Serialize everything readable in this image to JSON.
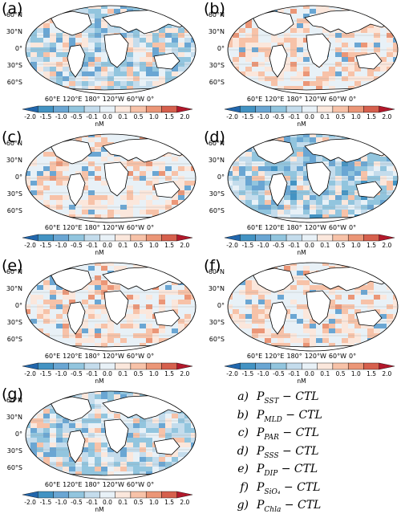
{
  "panels": [
    {
      "label": "(a)",
      "pattern": "mixed"
    },
    {
      "label": "(b)",
      "pattern": "warm"
    },
    {
      "label": "(c)",
      "pattern": "warm"
    },
    {
      "label": "(d)",
      "pattern": "cool"
    },
    {
      "label": "(e)",
      "pattern": "warm"
    },
    {
      "label": "(f)",
      "pattern": "warm"
    },
    {
      "label": "(g)",
      "pattern": "mixed"
    }
  ],
  "latitude_labels": [
    "60°N",
    "30°N",
    "0°",
    "30°S",
    "60°S"
  ],
  "longitude_labels": [
    "60°E",
    "120°E",
    "180°",
    "120°W",
    "60°W",
    "0°"
  ],
  "colorbar": {
    "ticks": [
      "-2.0",
      "-1.5",
      "-1.0",
      "-0.5",
      "-0.1",
      "0.0",
      "0.1",
      "0.5",
      "1.0",
      "1.5",
      "2.0"
    ],
    "unit": "nM",
    "colors": [
      "#2166ac",
      "#4393c3",
      "#6aa6d3",
      "#92c5de",
      "#c4dcec",
      "#e8f1f7",
      "#fbe7dc",
      "#f7c2a8",
      "#eb9677",
      "#d6604d",
      "#b2182b"
    ]
  },
  "legend": [
    {
      "key": "a)",
      "base": "P",
      "sub": "SST",
      "rest": "− CTL"
    },
    {
      "key": "b)",
      "base": "P",
      "sub": "MLD",
      "rest": "− CTL"
    },
    {
      "key": "c)",
      "base": "P",
      "sub": "PAR",
      "rest": "− CTL"
    },
    {
      "key": "d)",
      "base": "P",
      "sub": "SSS",
      "rest": "− CTL"
    },
    {
      "key": "e)",
      "base": "P",
      "sub": "DIP",
      "rest": "− CTL"
    },
    {
      "key": "f)",
      "base": "P",
      "sub": "SiO₄",
      "rest": "− CTL"
    },
    {
      "key": "g)",
      "base": "P",
      "sub": "Chla",
      "rest": "− CTL"
    }
  ]
}
